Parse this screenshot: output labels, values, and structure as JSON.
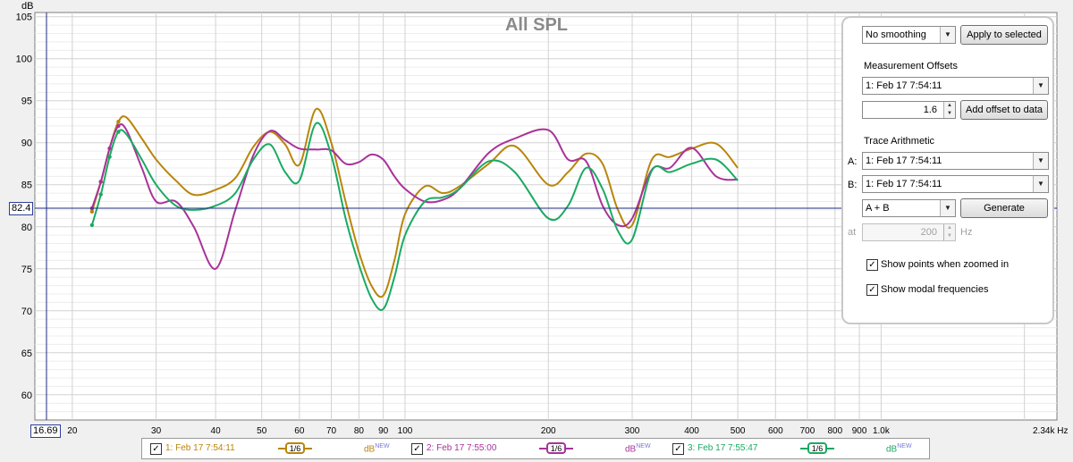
{
  "chart": {
    "title": "All SPL",
    "y_unit": "dB",
    "x_unit": "Hz",
    "y_ticks": [
      "105",
      "100",
      "95",
      "90",
      "85",
      "80",
      "75",
      "70",
      "65",
      "60"
    ],
    "x_ticks": [
      "20",
      "30",
      "40",
      "50",
      "60",
      "70",
      "80",
      "90",
      "100",
      "200",
      "300",
      "400",
      "500",
      "600",
      "700",
      "800",
      "900",
      "1.0k"
    ],
    "x_end_label": "2.34k Hz",
    "cursor_x_label": "16.69",
    "cursor_y_label": "82.4"
  },
  "chart_data": {
    "type": "line",
    "title": "All SPL",
    "xlabel": "Hz",
    "ylabel": "dB",
    "xscale": "log",
    "xlim": [
      16.69,
      2340
    ],
    "ylim": [
      57,
      105.5
    ],
    "grid": true,
    "series": [
      {
        "name": "1: Feb 17 7:54:11",
        "color": "#b8860b",
        "x": [
          22,
          23,
          24,
          25,
          26,
          28,
          30,
          33,
          36,
          40,
          44,
          48,
          52,
          56,
          60,
          65,
          70,
          75,
          80,
          85,
          90,
          95,
          100,
          110,
          120,
          130,
          150,
          170,
          200,
          220,
          240,
          260,
          280,
          300,
          330,
          360,
          400,
          450,
          500
        ],
        "y": [
          81.8,
          85.5,
          89.5,
          92.5,
          93,
          90.5,
          88,
          85.5,
          83.8,
          84.4,
          85.8,
          89.5,
          91.3,
          89.8,
          87.4,
          94,
          90,
          83,
          77,
          73,
          71.8,
          76,
          81.5,
          84.8,
          84,
          84.8,
          87.5,
          89.6,
          85,
          86.5,
          88.7,
          87.5,
          82,
          80.2,
          88,
          88.3,
          89.3,
          89.9,
          87
        ]
      },
      {
        "name": "2: Feb 17 7:55:00",
        "color": "#a8329a",
        "x": [
          22,
          23,
          24,
          25,
          26,
          28,
          30,
          33,
          36,
          40,
          44,
          48,
          52,
          56,
          60,
          65,
          70,
          75,
          80,
          85,
          90,
          95,
          100,
          110,
          120,
          130,
          150,
          170,
          200,
          220,
          240,
          260,
          280,
          300,
          330,
          360,
          400,
          450,
          500
        ],
        "y": [
          82.2,
          85.5,
          89.5,
          92,
          91.5,
          87,
          83,
          83,
          80,
          75,
          82,
          88.5,
          91.4,
          90.3,
          89.3,
          89.2,
          89.1,
          87.5,
          87.7,
          88.6,
          88,
          86,
          84.5,
          83,
          83.2,
          84.5,
          88.8,
          90.5,
          91.5,
          88,
          87.8,
          82.5,
          80.2,
          81,
          86.8,
          87,
          89.4,
          86,
          85.6
        ]
      },
      {
        "name": "3: Feb 17 7:55:47",
        "color": "#1aaa62",
        "x": [
          22,
          23,
          24,
          25,
          26,
          28,
          30,
          33,
          36,
          40,
          44,
          48,
          52,
          56,
          60,
          65,
          70,
          75,
          80,
          85,
          90,
          95,
          100,
          110,
          120,
          130,
          150,
          170,
          200,
          220,
          240,
          260,
          280,
          300,
          330,
          360,
          400,
          450,
          500
        ],
        "y": [
          80.2,
          84,
          88.5,
          91.3,
          91,
          88,
          85,
          82.5,
          82,
          82.5,
          84,
          88,
          89.8,
          86.5,
          85.5,
          92.3,
          88.5,
          81,
          75.5,
          71.5,
          70.2,
          74,
          79,
          83,
          83.5,
          84.5,
          87.8,
          86.5,
          81,
          82.5,
          87,
          84.5,
          79.5,
          78.5,
          86.7,
          86.5,
          87.5,
          88,
          85.5
        ]
      }
    ]
  },
  "panel": {
    "smoothing_value": "No  smoothing",
    "apply_button": "Apply to selected",
    "offsets_label": "Measurement Offsets",
    "offset_measurement": "1: Feb 17 7:54:11",
    "offset_value": "1.6",
    "add_offset_button": "Add offset to data",
    "arith_label": "Trace Arithmetic",
    "a_label": "A:",
    "a_value": "1: Feb 17 7:54:11",
    "b_label": "B:",
    "b_value": "1: Feb 17 7:54:11",
    "op_value": "A + B",
    "generate_button": "Generate",
    "at_label": "at",
    "at_value": "200",
    "hz_label": "Hz",
    "show_points_label": "Show points when zoomed in",
    "show_modal_label": "Show modal frequencies"
  },
  "legend": {
    "items": [
      {
        "name": "1: Feb 17 7:54:11",
        "smoothing": "1/6",
        "db": "dB",
        "db_sup": "NEW",
        "color": "#b8860b"
      },
      {
        "name": "2: Feb 17 7:55:00",
        "smoothing": "1/6",
        "db": "dB",
        "db_sup": "NEW",
        "color": "#a8329a"
      },
      {
        "name": "3: Feb 17 7:55:47",
        "smoothing": "1/6",
        "db": "dB",
        "db_sup": "NEW",
        "color": "#1aaa62"
      }
    ]
  }
}
